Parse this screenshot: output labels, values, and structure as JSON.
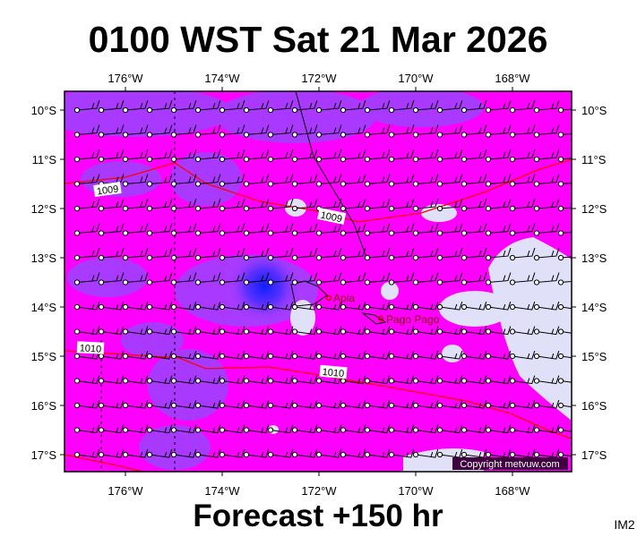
{
  "title": "0100 WST Sat 21 Mar 2026",
  "footer": "Forecast +150 hr",
  "image_id": "IM2",
  "copyright": "Copyright metvuw.com",
  "top_axis_labels": [
    "176°W",
    "174°W",
    "172°W",
    "170°W",
    "168°W"
  ],
  "bottom_axis_labels": [
    "176°W",
    "174°W",
    "172°W",
    "170°W",
    "168°W"
  ],
  "left_axis_labels": [
    "10°S",
    "11°S",
    "12°S",
    "13°S",
    "14°S",
    "15°S",
    "16°S",
    "17°S"
  ],
  "right_axis_labels": [
    "10°S",
    "11°S",
    "12°S",
    "13°S",
    "14°S",
    "15°S",
    "16°S",
    "17°S"
  ],
  "contour_labels": [
    "1009",
    "1009",
    "1010",
    "1010"
  ],
  "places": [
    "Apia",
    "Pago Pago"
  ]
}
